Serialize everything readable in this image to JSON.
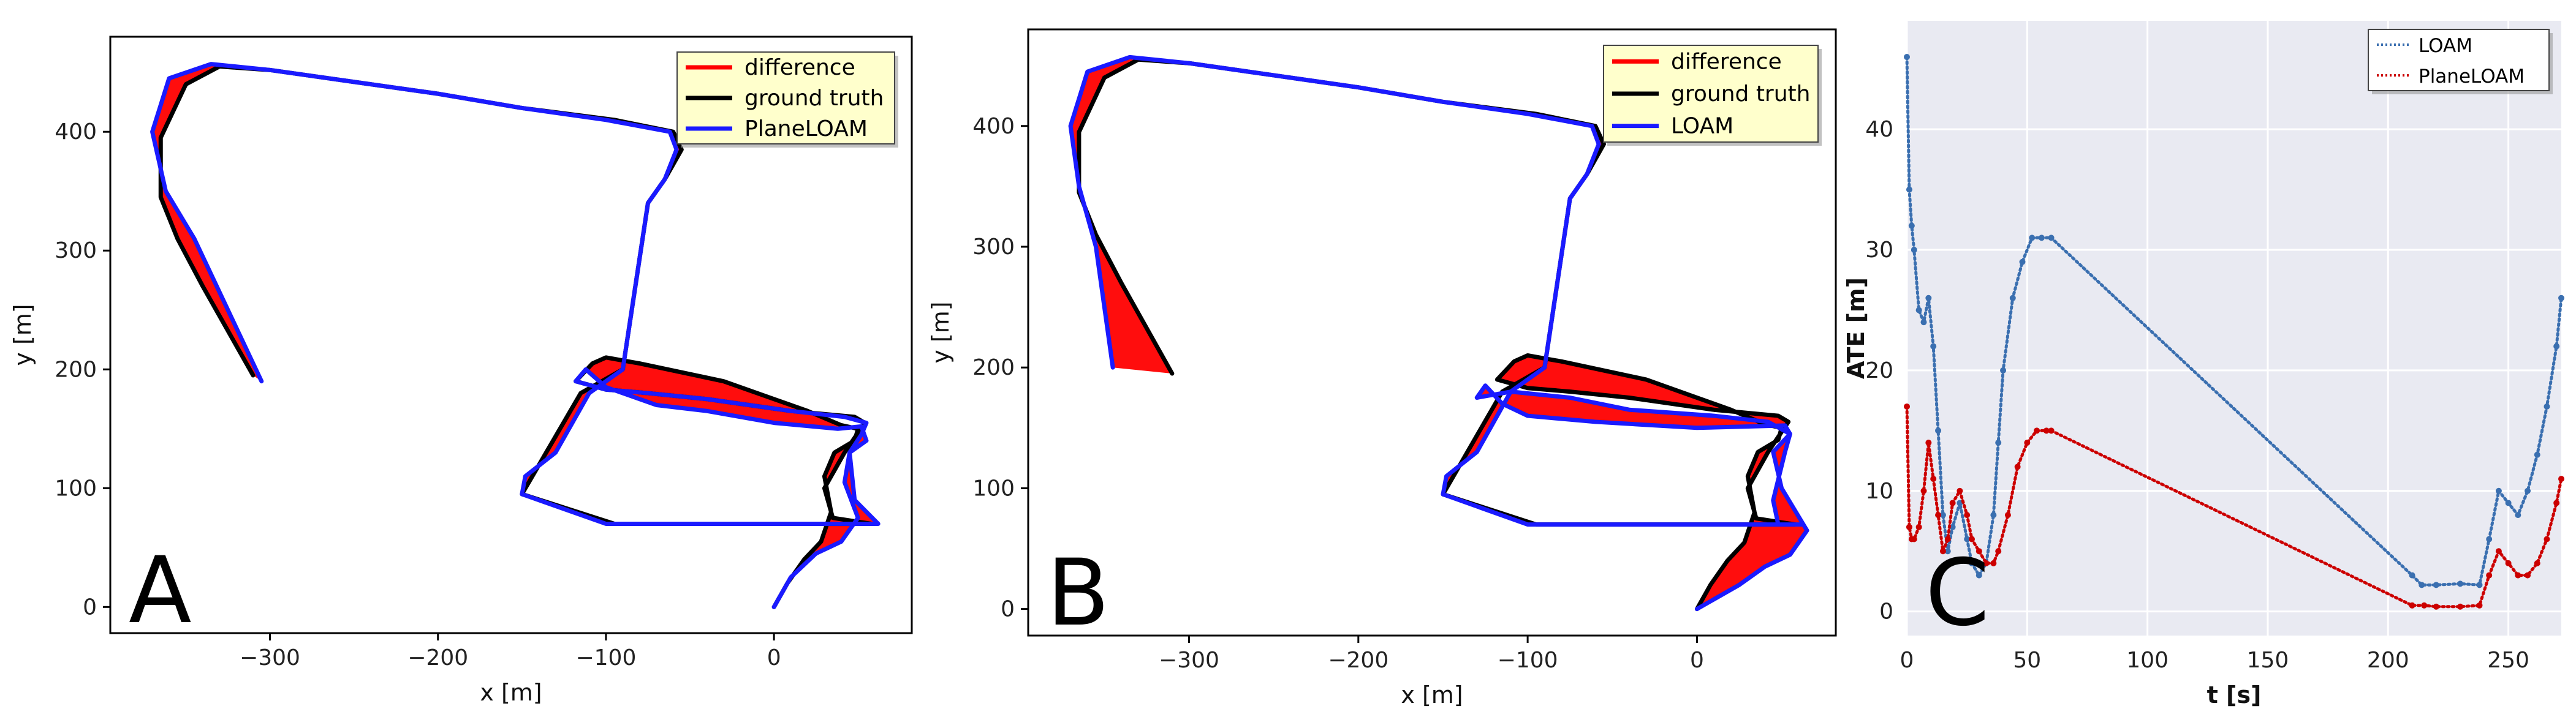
{
  "chart_data": [
    {
      "type": "line",
      "panel_label": "A",
      "xlabel": "x [m]",
      "ylabel": "y [m]",
      "xlim": [
        -395,
        82
      ],
      "ylim": [
        -22,
        480
      ],
      "xticks": [
        -300,
        -200,
        -100,
        0
      ],
      "yticks": [
        0,
        100,
        200,
        300,
        400
      ],
      "xtick_labels": [
        "−300",
        "−200",
        "−100",
        "0"
      ],
      "ytick_labels": [
        "0",
        "100",
        "200",
        "300",
        "400"
      ],
      "grid": false,
      "legend": {
        "placement": "top-right",
        "items": [
          {
            "label": "difference",
            "color": "#ff0000"
          },
          {
            "label": "ground truth",
            "color": "#000000"
          },
          {
            "label": "PlaneLOAM",
            "color": "#1a1aff"
          }
        ]
      },
      "series": [
        {
          "name": "ground truth",
          "color": "#000000",
          "x": [
            0,
            8,
            18,
            28,
            34,
            30,
            36,
            48,
            50,
            40,
            20,
            -30,
            -80,
            -100,
            -108,
            -118,
            -100,
            -75,
            -40,
            10,
            48,
            54,
            42,
            30,
            35,
            58,
            58,
            40,
            20,
            -5,
            -45,
            -75,
            -95,
            -150,
            -115,
            -90,
            -75,
            -65,
            -55,
            -60,
            -95,
            -150,
            -200,
            -250,
            -300,
            -330,
            -350,
            -365,
            -365,
            -355,
            -340,
            -310
          ],
          "y": [
            0,
            20,
            40,
            55,
            80,
            110,
            130,
            140,
            150,
            153,
            165,
            190,
            205,
            210,
            205,
            190,
            183,
            180,
            175,
            165,
            160,
            155,
            130,
            100,
            75,
            70,
            70,
            70,
            70,
            70,
            70,
            70,
            70,
            95,
            180,
            200,
            340,
            360,
            385,
            400,
            410,
            420,
            432,
            442,
            452,
            455,
            440,
            395,
            345,
            310,
            270,
            195
          ]
        },
        {
          "name": "PlaneLOAM",
          "color": "#1a1aff",
          "x": [
            0,
            10,
            25,
            40,
            50,
            42,
            45,
            55,
            52,
            38,
            0,
            -40,
            -70,
            -100,
            -112,
            -118,
            -100,
            -75,
            -40,
            10,
            42,
            55,
            52,
            45,
            48,
            62,
            60,
            40,
            20,
            -5,
            -45,
            -75,
            -100,
            -150,
            -148,
            -130,
            -110,
            -90,
            -75,
            -65,
            -58,
            -62,
            -100,
            -150,
            -200,
            -250,
            -300,
            -335,
            -360,
            -370,
            -362,
            -345,
            -325,
            -305
          ],
          "y": [
            0,
            25,
            45,
            55,
            75,
            105,
            130,
            140,
            152,
            150,
            155,
            165,
            170,
            185,
            200,
            190,
            183,
            180,
            175,
            165,
            160,
            155,
            145,
            130,
            90,
            70,
            70,
            70,
            70,
            70,
            70,
            70,
            70,
            95,
            110,
            130,
            180,
            200,
            340,
            360,
            385,
            400,
            410,
            420,
            432,
            442,
            452,
            457,
            445,
            400,
            350,
            310,
            250,
            190
          ]
        }
      ]
    },
    {
      "type": "line",
      "panel_label": "B",
      "xlabel": "x [m]",
      "ylabel": "y [m]",
      "xlim": [
        -395,
        82
      ],
      "ylim": [
        -22,
        480
      ],
      "xticks": [
        -300,
        -200,
        -100,
        0
      ],
      "yticks": [
        0,
        100,
        200,
        300,
        400
      ],
      "xtick_labels": [
        "−300",
        "−200",
        "−100",
        "0"
      ],
      "ytick_labels": [
        "0",
        "100",
        "200",
        "300",
        "400"
      ],
      "grid": false,
      "legend": {
        "placement": "top-right",
        "items": [
          {
            "label": "difference",
            "color": "#ff0000"
          },
          {
            "label": "ground truth",
            "color": "#000000"
          },
          {
            "label": "LOAM",
            "color": "#1a1aff"
          }
        ]
      },
      "series": [
        {
          "name": "ground truth",
          "color": "#000000",
          "x": [
            0,
            8,
            18,
            28,
            34,
            30,
            36,
            48,
            50,
            40,
            20,
            -30,
            -80,
            -100,
            -108,
            -118,
            -100,
            -75,
            -40,
            10,
            48,
            54,
            42,
            30,
            35,
            58,
            58,
            40,
            20,
            -5,
            -45,
            -75,
            -95,
            -150,
            -115,
            -90,
            -75,
            -65,
            -55,
            -60,
            -95,
            -150,
            -200,
            -250,
            -300,
            -330,
            -350,
            -365,
            -365,
            -355,
            -340,
            -310
          ],
          "y": [
            0,
            20,
            40,
            55,
            80,
            110,
            130,
            140,
            150,
            153,
            165,
            190,
            205,
            210,
            205,
            190,
            183,
            180,
            175,
            165,
            160,
            155,
            130,
            100,
            75,
            70,
            70,
            70,
            70,
            70,
            70,
            70,
            70,
            95,
            180,
            200,
            340,
            360,
            385,
            400,
            410,
            420,
            432,
            442,
            452,
            455,
            440,
            395,
            345,
            310,
            270,
            195
          ]
        },
        {
          "name": "LOAM",
          "color": "#1a1aff",
          "x": [
            0,
            25,
            40,
            55,
            65,
            50,
            45,
            55,
            52,
            0,
            -60,
            -100,
            -115,
            -125,
            -130,
            -110,
            -75,
            -40,
            10,
            42,
            55,
            52,
            45,
            48,
            62,
            60,
            40,
            20,
            -5,
            -45,
            -75,
            -100,
            -150,
            -148,
            -130,
            -110,
            -90,
            -75,
            -65,
            -58,
            -62,
            -100,
            -150,
            -200,
            -250,
            -300,
            -335,
            -360,
            -370,
            -365,
            -355,
            -345
          ],
          "y": [
            0,
            20,
            35,
            45,
            65,
            100,
            130,
            145,
            152,
            150,
            155,
            160,
            170,
            185,
            175,
            180,
            175,
            165,
            160,
            155,
            145,
            130,
            90,
            70,
            70,
            70,
            70,
            70,
            70,
            70,
            70,
            70,
            95,
            110,
            130,
            180,
            200,
            340,
            360,
            385,
            400,
            410,
            420,
            432,
            442,
            452,
            457,
            445,
            400,
            350,
            300,
            200
          ]
        }
      ]
    },
    {
      "type": "scatter",
      "panel_label": "C",
      "xlabel": "t [s]",
      "ylabel": "ATE [m]",
      "xlim": [
        0,
        272
      ],
      "ylim": [
        -2,
        49
      ],
      "xticks": [
        0,
        50,
        100,
        150,
        200,
        250
      ],
      "yticks": [
        0,
        10,
        20,
        30,
        40
      ],
      "xtick_labels": [
        "0",
        "50",
        "100",
        "150",
        "200",
        "250"
      ],
      "ytick_labels": [
        "0",
        "10",
        "20",
        "30",
        "40"
      ],
      "grid": true,
      "legend": {
        "placement": "top-right",
        "items": [
          {
            "label": "LOAM",
            "color": "#3a6fb0"
          },
          {
            "label": "PlaneLOAM",
            "color": "#cc0000"
          }
        ]
      },
      "series": [
        {
          "name": "LOAM",
          "color": "#3a6fb0",
          "x": [
            0,
            1,
            2,
            3,
            5,
            7,
            9,
            11,
            13,
            15,
            17,
            19,
            22,
            25,
            27,
            30,
            33,
            36,
            38,
            40,
            44,
            48,
            52,
            56,
            60,
            210,
            214,
            220,
            230,
            238,
            242,
            246,
            250,
            254,
            258,
            262,
            266,
            270,
            272
          ],
          "x_note": "",
          "y": [
            46,
            35,
            32,
            30,
            25,
            24,
            26,
            22,
            15,
            8,
            5,
            7,
            9,
            6,
            4,
            3,
            4,
            8,
            14,
            20,
            26,
            29,
            31,
            31,
            31,
            3,
            2.2,
            2.2,
            2.3,
            2.2,
            6,
            10,
            9,
            8,
            10,
            13,
            17,
            22,
            26
          ]
        },
        {
          "name": "PlaneLOAM",
          "color": "#cc0000",
          "x": [
            0,
            1,
            2,
            3,
            5,
            7,
            9,
            11,
            13,
            15,
            17,
            19,
            22,
            25,
            27,
            30,
            33,
            36,
            38,
            42,
            46,
            50,
            54,
            58,
            60,
            210,
            215,
            220,
            230,
            238,
            242,
            246,
            250,
            254,
            258,
            262,
            266,
            270,
            272
          ],
          "x_note": "",
          "y": [
            17,
            7,
            6,
            6,
            7,
            10,
            14,
            11,
            8,
            5,
            6,
            9,
            10,
            8,
            6,
            5,
            4,
            4,
            5,
            8,
            12,
            14,
            15,
            15,
            15,
            0.5,
            0.5,
            0.4,
            0.4,
            0.5,
            3,
            5,
            4,
            3,
            3,
            4,
            6,
            9,
            11
          ]
        }
      ]
    }
  ]
}
